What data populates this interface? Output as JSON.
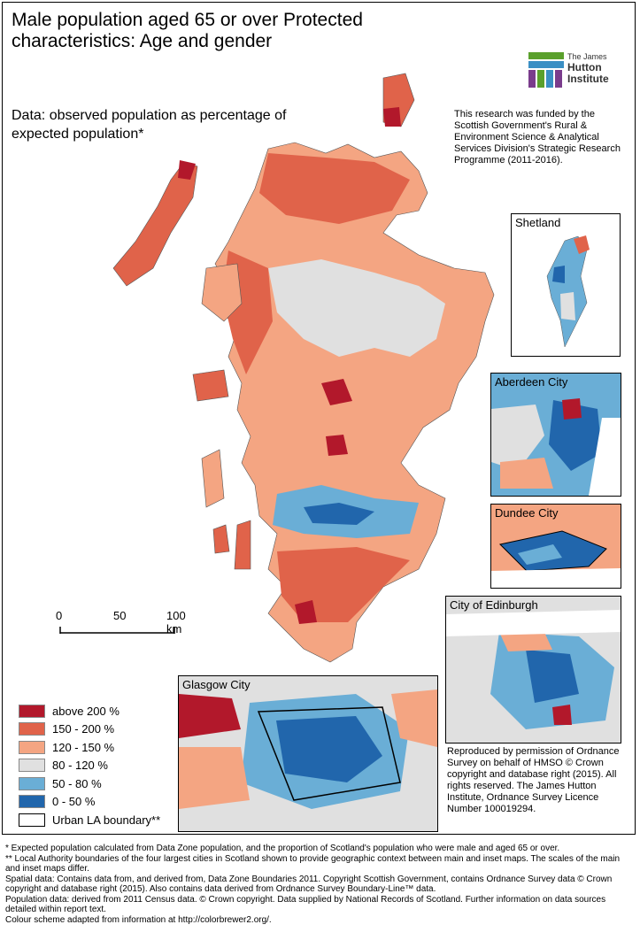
{
  "title": "Male population aged 65 or over Protected characteristics: Age and gender",
  "subtitle": "Data: observed population as percentage of expected population*",
  "logo": {
    "line1": "The James",
    "line2": "Hutton",
    "line3": "Institute"
  },
  "funding_text": "This research was funded by the Scottish Government's Rural & Environment Science & Analytical Services Division's Strategic Research Programme (2011-2016).",
  "insets": {
    "shetland": "Shetland",
    "aberdeen": "Aberdeen City",
    "dundee": "Dundee City",
    "edinburgh": "City of Edinburgh",
    "glasgow": "Glasgow City"
  },
  "scale_bar": {
    "labels": [
      "0",
      "50",
      "100 km"
    ]
  },
  "legend": {
    "items": [
      {
        "label": "above 200 %",
        "color": "#b2182b"
      },
      {
        "label": "150 - 200 %",
        "color": "#e0634a"
      },
      {
        "label": "120 - 150 %",
        "color": "#f4a582"
      },
      {
        "label": "80 - 120 %",
        "color": "#e0e0e0"
      },
      {
        "label": "50 - 80 %",
        "color": "#6aaed6"
      },
      {
        "label": "0 - 50 %",
        "color": "#2166ac"
      },
      {
        "label": "Urban LA boundary**",
        "color": "#ffffff"
      }
    ]
  },
  "attribution": "Reproduced by permission of Ordnance Survey on behalf of HMSO © Crown copyright and database right (2015). All rights reserved. The James Hutton Institute, Ordnance Survey Licence Number 100019294.",
  "notes": [
    "* Expected population calculated from Data Zone population, and the proportion of Scotland's population who were male and aged 65 or over.",
    "** Local Authority boundaries of the four largest cities in Scotland shown to provide geographic context between main and inset maps. The scales of the main and inset maps differ.",
    "Spatial data: Contains data from, and derived from, Data Zone Boundaries 2011. Copyright Scottish Government, contains Ordnance Survey data © Crown copyright and database right (2015). Also contains data derived from Ordnance Survey Boundary-Line™ data.",
    "Population data: derived from 2011 Census data. © Crown copyright. Data supplied by National Records of Scotland. Further information on data sources detailed within report text.",
    "Colour scheme adapted from information at http://colorbrewer2.org/."
  ]
}
